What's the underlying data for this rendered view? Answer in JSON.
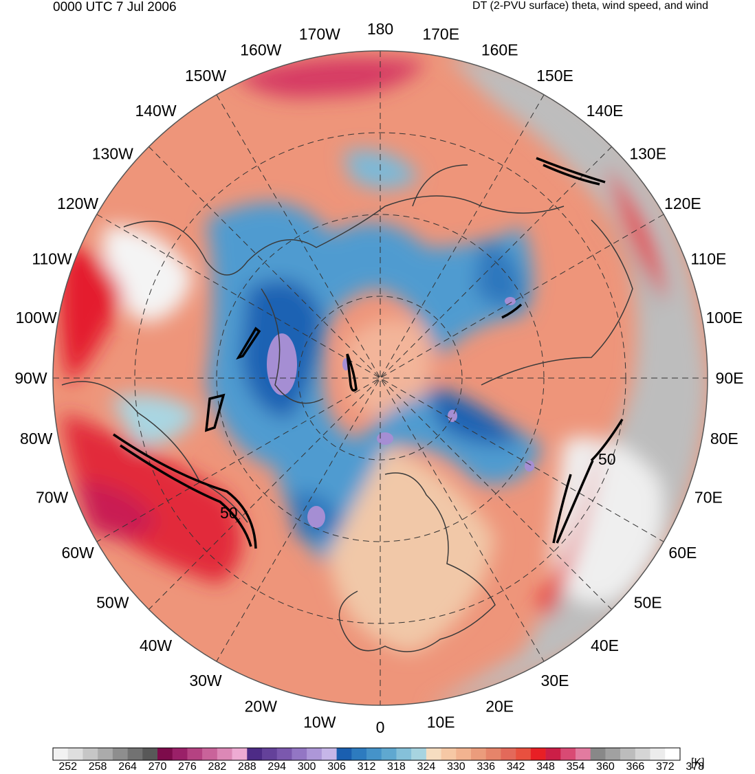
{
  "header": {
    "time_label": "0000 UTC 7 Jul 2006",
    "title": "DT (2-PVU surface) theta, wind speed, and wind"
  },
  "map": {
    "projection": "north-polar-stereographic",
    "longitude_labels": [
      "180",
      "170E",
      "160E",
      "150E",
      "140E",
      "130E",
      "120E",
      "110E",
      "100E",
      "90E",
      "80E",
      "70E",
      "60E",
      "50E",
      "40E",
      "30E",
      "20E",
      "10E",
      "0",
      "10W",
      "20W",
      "30W",
      "40W",
      "50W",
      "60W",
      "70W",
      "80W",
      "90W",
      "100W",
      "110W",
      "120W",
      "130W",
      "140W",
      "150W",
      "160W",
      "170W"
    ],
    "wind_speed_contour_labels": [
      "50",
      "50"
    ],
    "colors": {
      "cold_core": "#1a5fb0",
      "warm_subtropics": "#e8503f",
      "jet_max": "#e81f25"
    }
  },
  "colorbar": {
    "unit": "[K]",
    "tick_labels": [
      "252",
      "258",
      "264",
      "270",
      "276",
      "282",
      "288",
      "294",
      "300",
      "306",
      "312",
      "318",
      "324",
      "330",
      "336",
      "342",
      "348",
      "354",
      "360",
      "366",
      "372",
      "378"
    ],
    "swatches": [
      "#f2f2f2",
      "#dedede",
      "#c6c6c6",
      "#ababab",
      "#8e8e8e",
      "#727272",
      "#585858",
      "#7d0b4b",
      "#9a2068",
      "#b54282",
      "#c9639a",
      "#dc88b6",
      "#eeabd3",
      "#4d2b86",
      "#64419a",
      "#7b58ae",
      "#9376c4",
      "#ad97d8",
      "#c6b6e8",
      "#1a5fb0",
      "#2d7bbf",
      "#4593c9",
      "#5fa8d0",
      "#85c0d9",
      "#a7d4e0",
      "#f6ddc0",
      "#f6c8a5",
      "#f2b390",
      "#eb9c7c",
      "#e6846a",
      "#e3695a",
      "#e8503f",
      "#e81f25",
      "#cc1e47",
      "#d94a74",
      "#e27ba0",
      "#888888",
      "#a1a1a1",
      "#bcbcbc",
      "#d5d5d5",
      "#ececec",
      "#ffffff"
    ]
  }
}
